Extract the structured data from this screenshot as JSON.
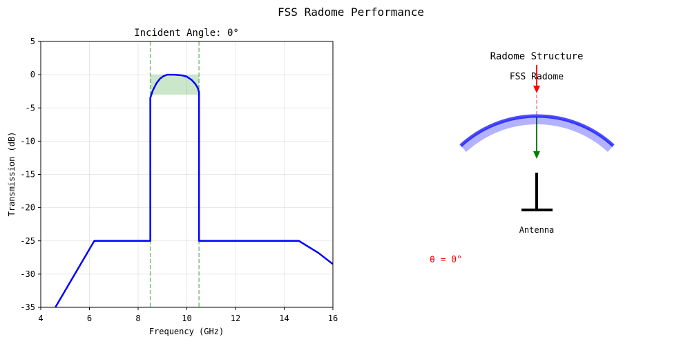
{
  "figure": {
    "title": "FSS Radome Performance"
  },
  "chart_data": {
    "type": "line",
    "title": "Incident Angle: 0°",
    "xlabel": "Frequency (GHz)",
    "ylabel": "Transmission (dB)",
    "xlim": [
      4,
      16
    ],
    "ylim": [
      -35,
      5
    ],
    "xticks": [
      4,
      6,
      8,
      10,
      12,
      14,
      16
    ],
    "xtick_labels": [
      "4",
      "6",
      "8",
      "10",
      "12",
      "14",
      "16"
    ],
    "yticks": [
      5,
      0,
      -5,
      -10,
      -15,
      -20,
      -25,
      -30,
      -35
    ],
    "ytick_labels": [
      "5",
      "0",
      "-5",
      "-10",
      "-15",
      "-20",
      "-25",
      "-30",
      "-35"
    ],
    "grid": true,
    "series": [
      {
        "color": "#0000ff",
        "x": [
          4.6,
          6.2,
          8.5,
          8.5,
          8.6,
          8.75,
          8.9,
          9.05,
          9.2,
          9.5,
          9.8,
          10.0,
          10.2,
          10.35,
          10.45,
          10.5,
          10.5,
          14.6,
          15.0,
          15.4,
          16.0
        ],
        "y": [
          -35,
          -25,
          -25,
          -3.5,
          -2.4,
          -1.3,
          -0.6,
          -0.2,
          0,
          0,
          -0.1,
          -0.3,
          -0.8,
          -1.4,
          -2.0,
          -2.6,
          -25,
          -25,
          -25.9,
          -26.8,
          -28.5
        ]
      }
    ],
    "vlines": {
      "x": [
        8.5,
        10.5
      ],
      "color": "#008000"
    },
    "band": {
      "x": [
        8.5,
        10.5
      ],
      "y": [
        -3,
        0
      ],
      "color": "#008000"
    }
  },
  "diagram": {
    "title": "Radome Structure",
    "radome_label": "FSS Radome",
    "antenna_label": "Antenna",
    "angle_label": "θ = 0°",
    "colors": {
      "incident": "#ff0000",
      "transmitted": "#008000",
      "radome": "#0000ff",
      "antenna": "#000000",
      "angle_text": "#ff0000"
    }
  }
}
